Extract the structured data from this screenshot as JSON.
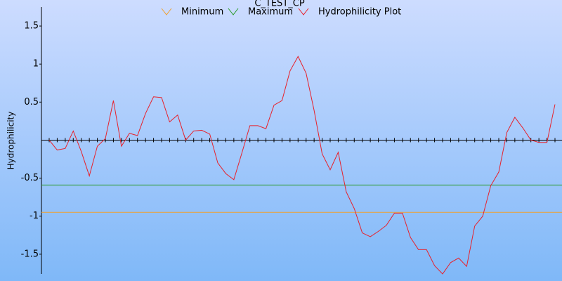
{
  "chart_data": {
    "type": "line",
    "title": "C_TEST_CP",
    "y_label": "Hydrophilicity",
    "ylim": [
      -1.76,
      1.75
    ],
    "yticks": [
      1.5,
      1,
      0.5,
      -0.5,
      -1,
      -1.5
    ],
    "series": [
      {
        "name": "Minimum",
        "color": "#f0a030",
        "value": -0.95
      },
      {
        "name": "Maximum",
        "color": "#2a9a2a",
        "value": -0.59
      },
      {
        "name": "Hydrophilicity Plot",
        "color": "#e8202a",
        "values": [
          0,
          -0.13,
          -0.11,
          0.12,
          -0.15,
          -0.47,
          -0.08,
          0.02,
          0.52,
          -0.08,
          0.09,
          0.06,
          0.35,
          0.57,
          0.56,
          0.24,
          0.33,
          0.0,
          0.12,
          0.13,
          0.08,
          -0.3,
          -0.44,
          -0.52,
          -0.17,
          0.19,
          0.19,
          0.15,
          0.46,
          0.52,
          0.91,
          1.1,
          0.88,
          0.39,
          -0.18,
          -0.39,
          -0.16,
          -0.68,
          -0.9,
          -1.22,
          -1.27,
          -1.2,
          -1.12,
          -0.96,
          -0.96,
          -1.28,
          -1.44,
          -1.44,
          -1.65,
          -1.76,
          -1.61,
          -1.55,
          -1.66,
          -1.13,
          -1.0,
          -0.6,
          -0.42,
          0.1,
          0.3,
          0.16,
          0.0,
          -0.03,
          -0.03,
          0.47
        ]
      }
    ]
  }
}
